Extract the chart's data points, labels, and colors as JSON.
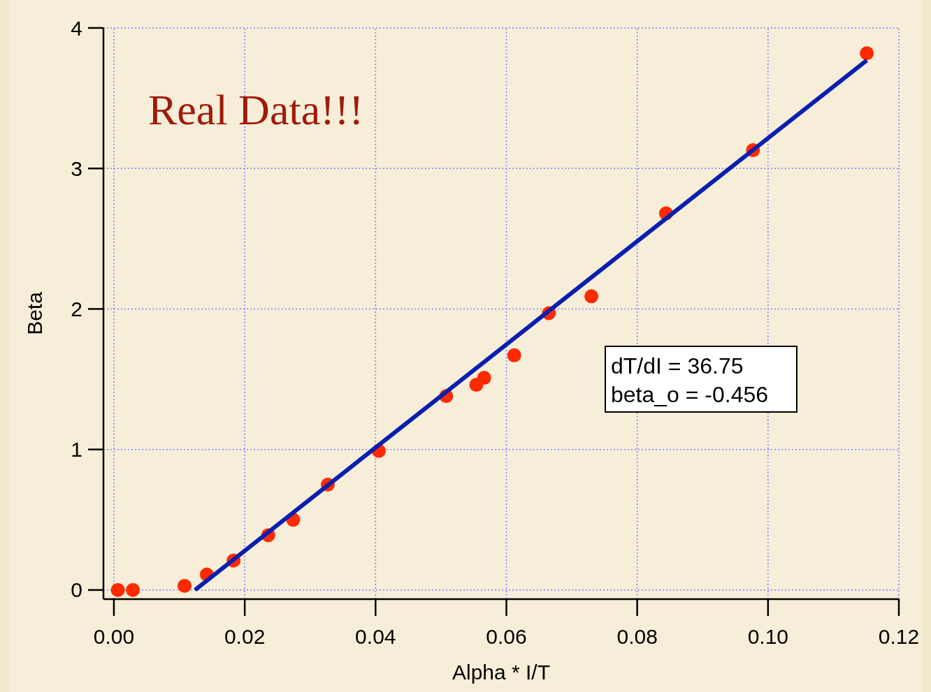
{
  "chart_data": {
    "type": "scatter",
    "xlabel": "Alpha * I/T",
    "ylabel": "Beta",
    "xlim": [
      -0.0016,
      0.12
    ],
    "ylim": [
      -0.065,
      4
    ],
    "xticks": [
      {
        "value": 0,
        "label": "0.00"
      },
      {
        "value": 0.02,
        "label": "0.02"
      },
      {
        "value": 0.04,
        "label": "0.04"
      },
      {
        "value": 0.06,
        "label": "0.06"
      },
      {
        "value": 0.08,
        "label": "0.08"
      },
      {
        "value": 0.1,
        "label": "0.10"
      },
      {
        "value": 0.12,
        "label": "0.12"
      }
    ],
    "yticks": [
      0,
      1,
      2,
      3,
      4
    ],
    "grid": true,
    "annotations": [
      "Real Data!!!",
      "dT/dI = 36.75",
      "beta_o = -0.456"
    ],
    "series": [
      {
        "marker": "circle",
        "color": "#ff2a00",
        "x": [
          0.0006,
          0.0029,
          0.0108,
          0.0142,
          0.0183,
          0.0236,
          0.0274,
          0.0327,
          0.0405,
          0.0508,
          0.0554,
          0.0566,
          0.0612,
          0.0665,
          0.073,
          0.0844,
          0.0977,
          0.1151
        ],
        "values": [
          0,
          0,
          0.03,
          0.11,
          0.21,
          0.39,
          0.5,
          0.75,
          0.99,
          1.38,
          1.46,
          1.51,
          1.67,
          1.97,
          2.09,
          2.68,
          3.13,
          3.82
        ]
      },
      {
        "type": "line",
        "color": "#0a1fb0",
        "line_style": "solid",
        "x": [
          0.0124,
          0.1151
        ],
        "values": [
          0,
          3.77
        ]
      }
    ]
  }
}
